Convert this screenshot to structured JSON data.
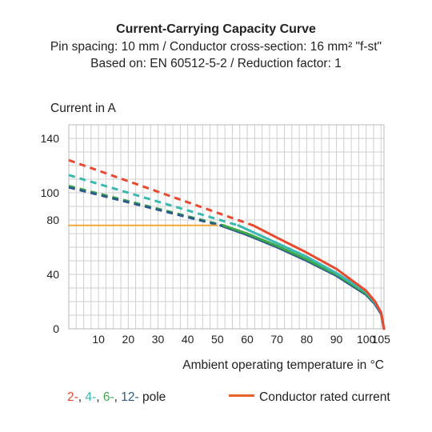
{
  "chart_data": {
    "type": "line",
    "title": "Current-Carrying Capacity Curve",
    "subtitle_lines": [
      "Pin spacing: 10 mm / Conductor cross-section: 16 mm² \"f-st\"",
      "Based on: EN 60512-5-2 / Reduction factor: 1"
    ],
    "ylabel": "Current in A",
    "xlabel": "Ambient operating temperature in °C",
    "xlim": [
      0,
      106
    ],
    "ylim": [
      0,
      150
    ],
    "x_ticks": [
      10,
      20,
      30,
      40,
      50,
      60,
      70,
      80,
      90,
      100,
      105
    ],
    "y_ticks": [
      0,
      40,
      80,
      100,
      140
    ],
    "grid": true,
    "series": [
      {
        "name": "2-",
        "color": "#e8492f",
        "dashed": [
          [
            0,
            124
          ],
          [
            62,
            76
          ]
        ],
        "solid": [
          [
            62,
            76
          ],
          [
            70,
            67
          ],
          [
            80,
            56
          ],
          [
            90,
            44
          ],
          [
            100,
            28
          ],
          [
            103,
            20
          ],
          [
            105,
            12
          ],
          [
            106,
            0
          ]
        ]
      },
      {
        "name": "4-",
        "color": "#3bb8b0",
        "dashed": [
          [
            0,
            113
          ],
          [
            57,
            76
          ]
        ],
        "solid": [
          [
            57,
            76
          ],
          [
            70,
            63
          ],
          [
            80,
            53
          ],
          [
            90,
            41
          ],
          [
            100,
            27
          ],
          [
            103,
            19
          ],
          [
            105,
            12
          ],
          [
            106,
            0
          ]
        ]
      },
      {
        "name": "6-",
        "color": "#3ba84a",
        "dashed": [
          [
            0,
            105
          ],
          [
            52,
            76
          ]
        ],
        "solid": [
          [
            52,
            76
          ],
          [
            60,
            70
          ],
          [
            70,
            61
          ],
          [
            80,
            51
          ],
          [
            90,
            40
          ],
          [
            100,
            26
          ],
          [
            103,
            19
          ],
          [
            105,
            12
          ],
          [
            106,
            0
          ]
        ]
      },
      {
        "name": "12-",
        "color": "#2c5a8a",
        "dashed": [
          [
            0,
            104
          ],
          [
            51,
            76
          ]
        ],
        "solid": [
          [
            51,
            76
          ],
          [
            60,
            69
          ],
          [
            70,
            60
          ],
          [
            80,
            50
          ],
          [
            90,
            39
          ],
          [
            100,
            25
          ],
          [
            103,
            18
          ],
          [
            105,
            11
          ],
          [
            106,
            0
          ]
        ]
      },
      {
        "name": "Conductor rated current",
        "color": "#f2a93b",
        "solid": [
          [
            0,
            76
          ],
          [
            50,
            76
          ]
        ]
      }
    ]
  },
  "legend": {
    "pole_labels": [
      {
        "text": "2-",
        "color": "#e8492f"
      },
      {
        "text": "4-",
        "color": "#3bb8b0"
      },
      {
        "text": "6-",
        "color": "#3ba84a"
      },
      {
        "text": "12-",
        "color": "#2c5a8a"
      }
    ],
    "pole_suffix": "pole",
    "rated_label": "Conductor rated current",
    "rated_color": "#e8622c"
  }
}
